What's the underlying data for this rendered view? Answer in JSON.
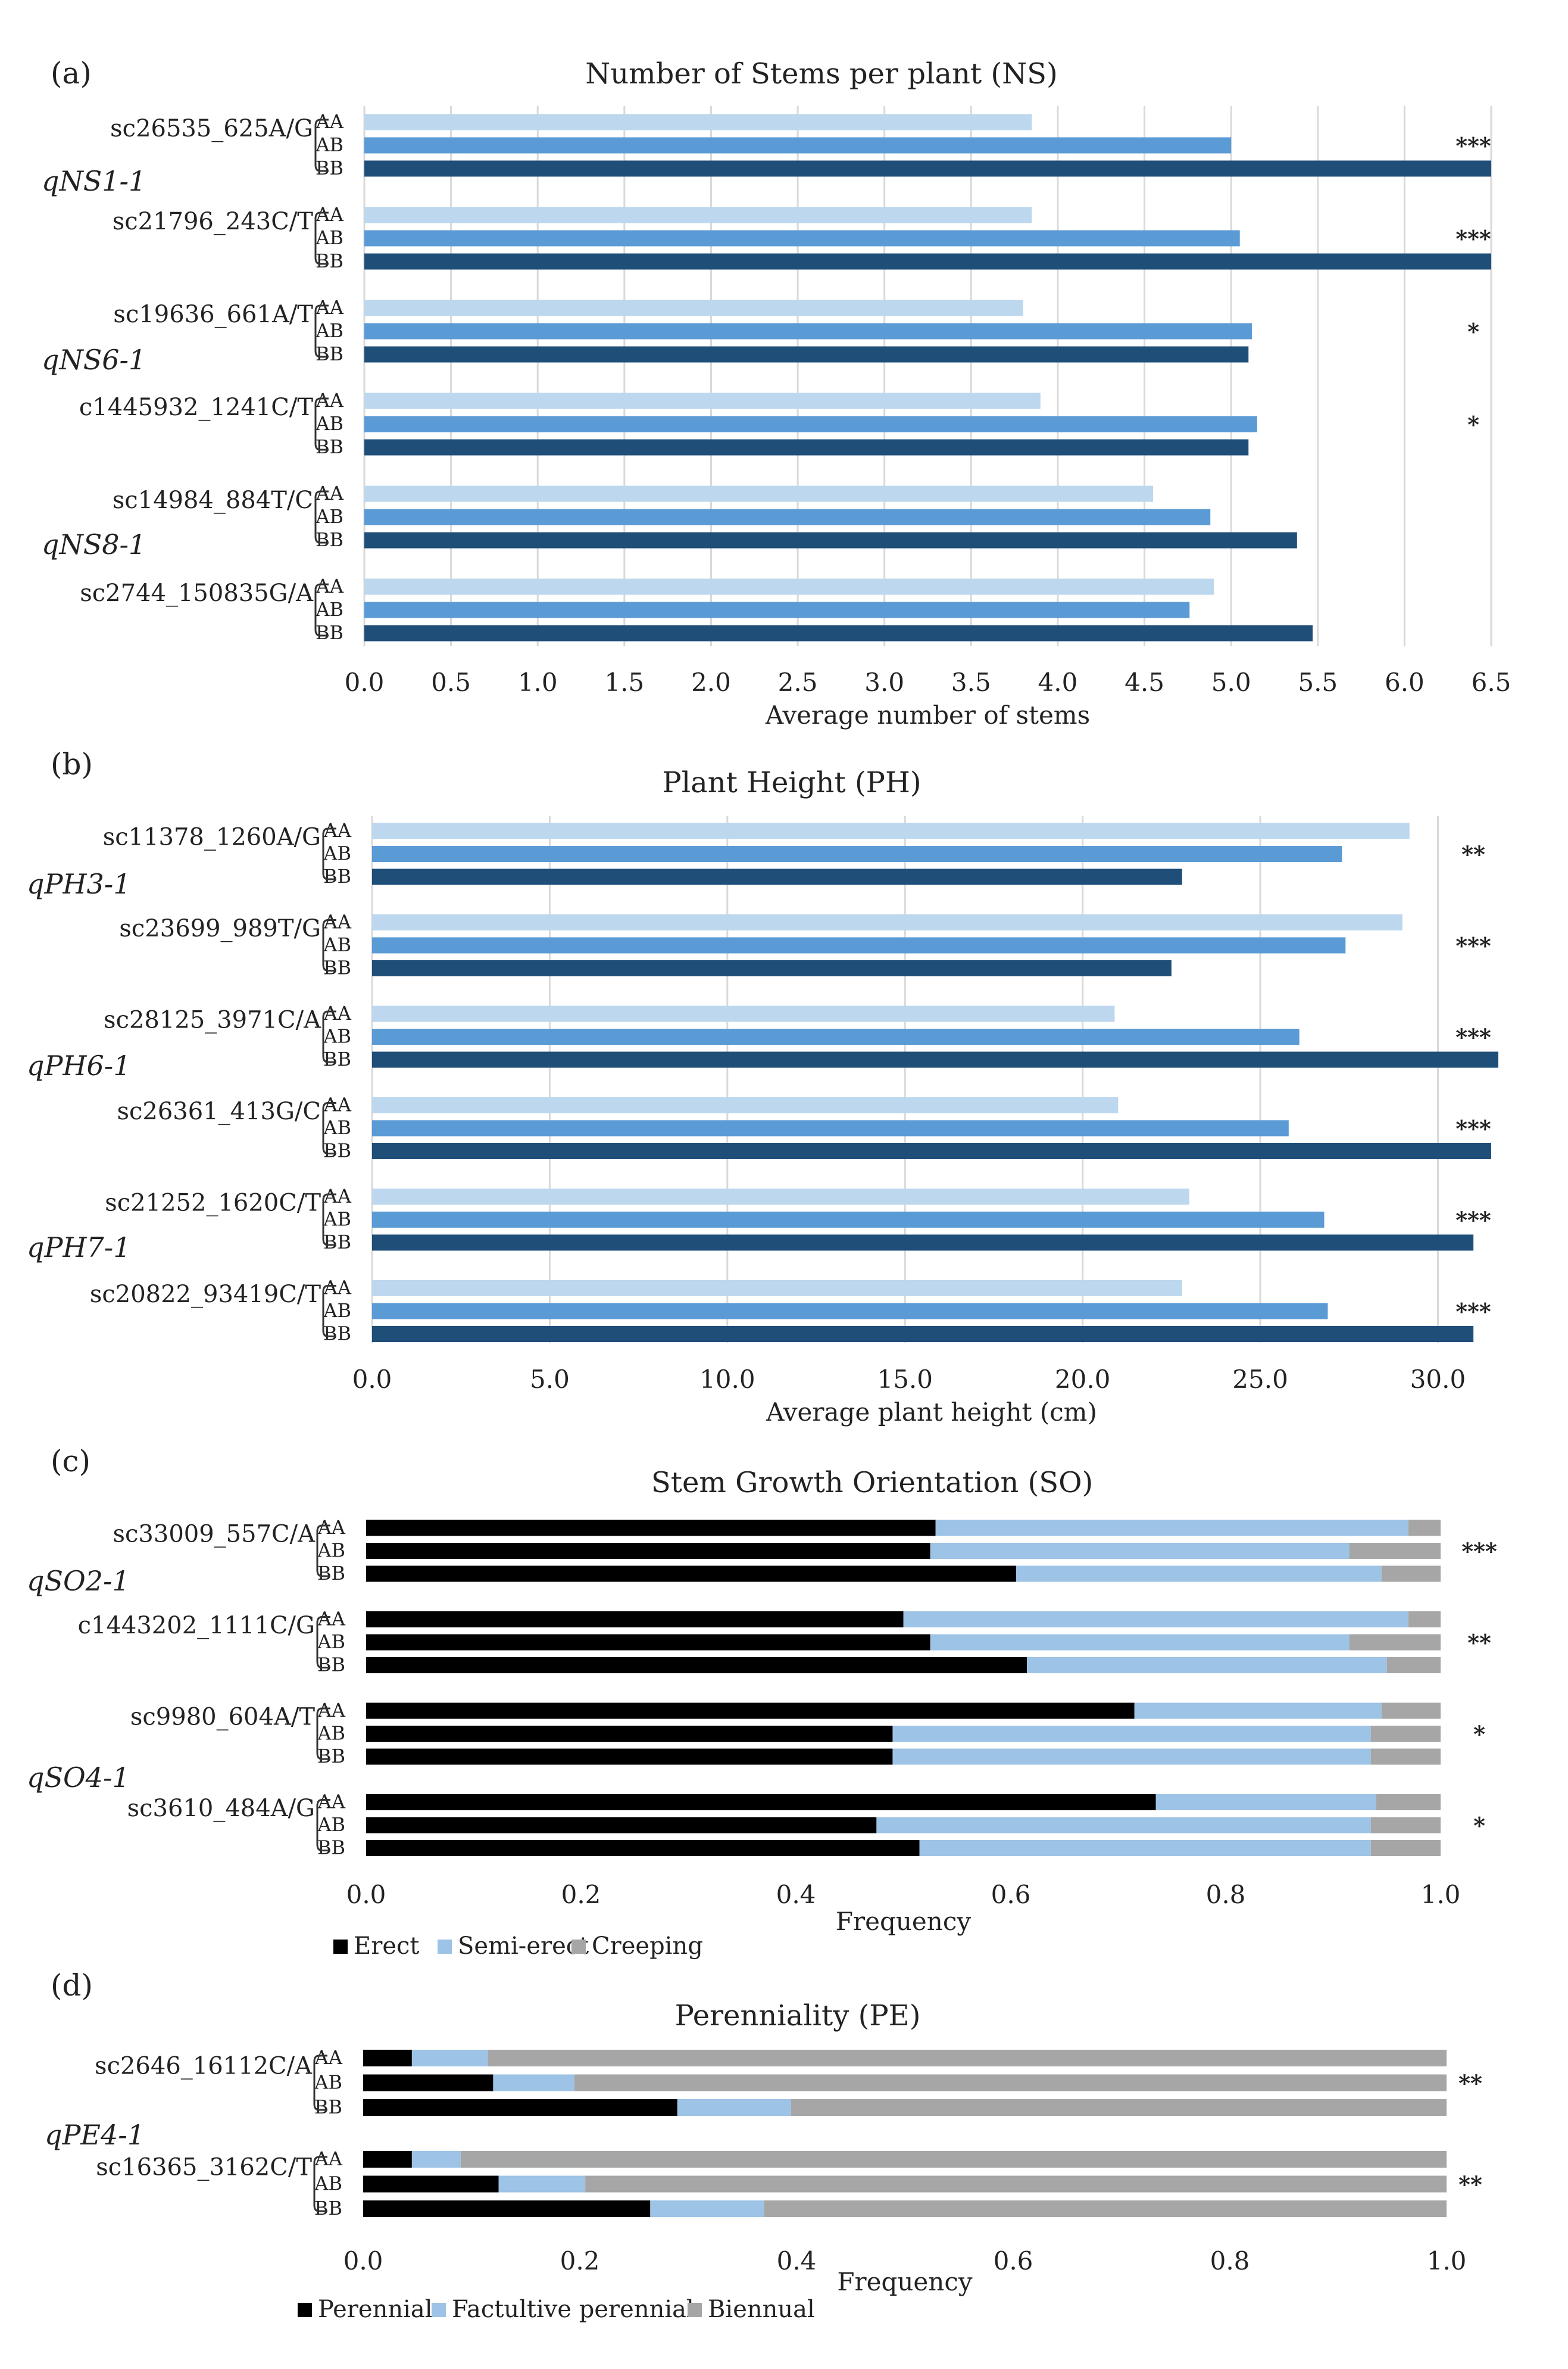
{
  "colors": {
    "AA": "#bdd7ee",
    "AB": "#5b9bd5",
    "BB": "#1f4e79",
    "erect": "#000000",
    "semi_erect": "#9dc3e6",
    "creeping": "#a6a6a6",
    "grid": "#d9d9d9",
    "bracket": "#333333"
  },
  "genotypes": [
    "AA",
    "AB",
    "BB"
  ],
  "chart_data": [
    {
      "type": "bar",
      "panel_label": "(a)",
      "title": "Number of Stems per plant (NS)",
      "xlabel": "Average number of stems",
      "xlim": [
        0,
        6.5
      ],
      "xticks": [
        "0.0",
        "0.5",
        "1.0",
        "1.5",
        "2.0",
        "2.5",
        "3.0",
        "3.5",
        "4.0",
        "4.5",
        "5.0",
        "5.5",
        "6.0",
        "6.5"
      ],
      "markers": [
        {
          "name": "sc26535_625A/G",
          "values": [
            3.85,
            5.0,
            6.5
          ],
          "sig": "***"
        },
        {
          "name": "sc21796_243C/T",
          "values": [
            3.85,
            5.05,
            6.5
          ],
          "sig": "***"
        },
        {
          "name": "sc19636_661A/T",
          "values": [
            3.8,
            5.12,
            5.1
          ],
          "sig": "*"
        },
        {
          "name": "c1445932_1241C/T",
          "values": [
            3.9,
            5.15,
            5.1
          ],
          "sig": "*"
        },
        {
          "name": "sc14984_884T/C",
          "values": [
            4.55,
            4.88,
            5.38
          ],
          "sig": ""
        },
        {
          "name": "sc2744_150835G/A",
          "values": [
            4.9,
            4.76,
            5.47
          ],
          "sig": ""
        }
      ],
      "qtls": [
        "qNS1-1",
        "qNS6-1",
        "qNS8-1"
      ]
    },
    {
      "type": "bar",
      "panel_label": "(b)",
      "title": "Plant Height (PH)",
      "xlabel": "Average plant height (cm)",
      "xlim": [
        0,
        31.5
      ],
      "xticks": [
        "0.0",
        "5.0",
        "10.0",
        "15.0",
        "20.0",
        "25.0",
        "30.0"
      ],
      "markers": [
        {
          "name": "sc11378_1260A/G",
          "values": [
            29.2,
            27.3,
            22.8
          ],
          "sig": "**"
        },
        {
          "name": "sc23699_989T/G",
          "values": [
            29.0,
            27.4,
            22.5
          ],
          "sig": "***"
        },
        {
          "name": "sc28125_3971C/A",
          "values": [
            20.9,
            26.1,
            31.7
          ],
          "sig": "***"
        },
        {
          "name": "sc26361_413G/C",
          "values": [
            21.0,
            25.8,
            31.5
          ],
          "sig": "***"
        },
        {
          "name": "sc21252_1620C/T",
          "values": [
            23.0,
            26.8,
            31.0
          ],
          "sig": "***"
        },
        {
          "name": "sc20822_93419C/T",
          "values": [
            22.8,
            26.9,
            31.0
          ],
          "sig": "***"
        }
      ],
      "qtls": [
        "qPH3-1",
        "qPH6-1",
        "qPH7-1"
      ]
    },
    {
      "type": "stacked_bar",
      "panel_label": "(c)",
      "title": "Stem Growth Orientation (SO)",
      "xlabel": "Frequency",
      "xlim": [
        0,
        1.0
      ],
      "xticks": [
        "0.0",
        "0.2",
        "0.4",
        "0.6",
        "0.8",
        "1.0"
      ],
      "categories": [
        "Erect",
        "Semi-erect",
        "Creeping"
      ],
      "markers": [
        {
          "name": "sc33009_557C/A",
          "values": [
            [
              0.53,
              0.44,
              0.03
            ],
            [
              0.525,
              0.39,
              0.085
            ],
            [
              0.605,
              0.34,
              0.055
            ]
          ],
          "sig": "***"
        },
        {
          "name": "c1443202_1111C/G",
          "values": [
            [
              0.5,
              0.47,
              0.03
            ],
            [
              0.525,
              0.39,
              0.085
            ],
            [
              0.615,
              0.335,
              0.05
            ]
          ],
          "sig": "**"
        },
        {
          "name": "sc9980_604A/T",
          "values": [
            [
              0.715,
              0.23,
              0.055
            ],
            [
              0.49,
              0.445,
              0.065
            ],
            [
              0.49,
              0.445,
              0.065
            ]
          ],
          "sig": "*"
        },
        {
          "name": "sc3610_484A/G",
          "values": [
            [
              0.735,
              0.205,
              0.06
            ],
            [
              0.475,
              0.46,
              0.065
            ],
            [
              0.515,
              0.42,
              0.065
            ]
          ],
          "sig": "*"
        }
      ],
      "qtls": [
        "qSO2-1",
        "qSO4-1"
      ]
    },
    {
      "type": "stacked_bar",
      "panel_label": "(d)",
      "title": "Perenniality (PE)",
      "xlabel": "Frequency",
      "xlim": [
        0,
        1.0
      ],
      "xticks": [
        "0.0",
        "0.2",
        "0.4",
        "0.6",
        "0.8",
        "1.0"
      ],
      "categories": [
        "Perennial",
        "Factultive perennial",
        "Biennual"
      ],
      "markers": [
        {
          "name": "sc2646_16112C/A",
          "values": [
            [
              0.045,
              0.07,
              0.885
            ],
            [
              0.12,
              0.075,
              0.805
            ],
            [
              0.29,
              0.105,
              0.605
            ]
          ],
          "sig": "**"
        },
        {
          "name": "sc16365_3162C/T",
          "values": [
            [
              0.045,
              0.045,
              0.91
            ],
            [
              0.125,
              0.08,
              0.795
            ],
            [
              0.265,
              0.105,
              0.63
            ]
          ],
          "sig": "**"
        }
      ],
      "qtls": [
        "qPE4-1"
      ]
    }
  ]
}
